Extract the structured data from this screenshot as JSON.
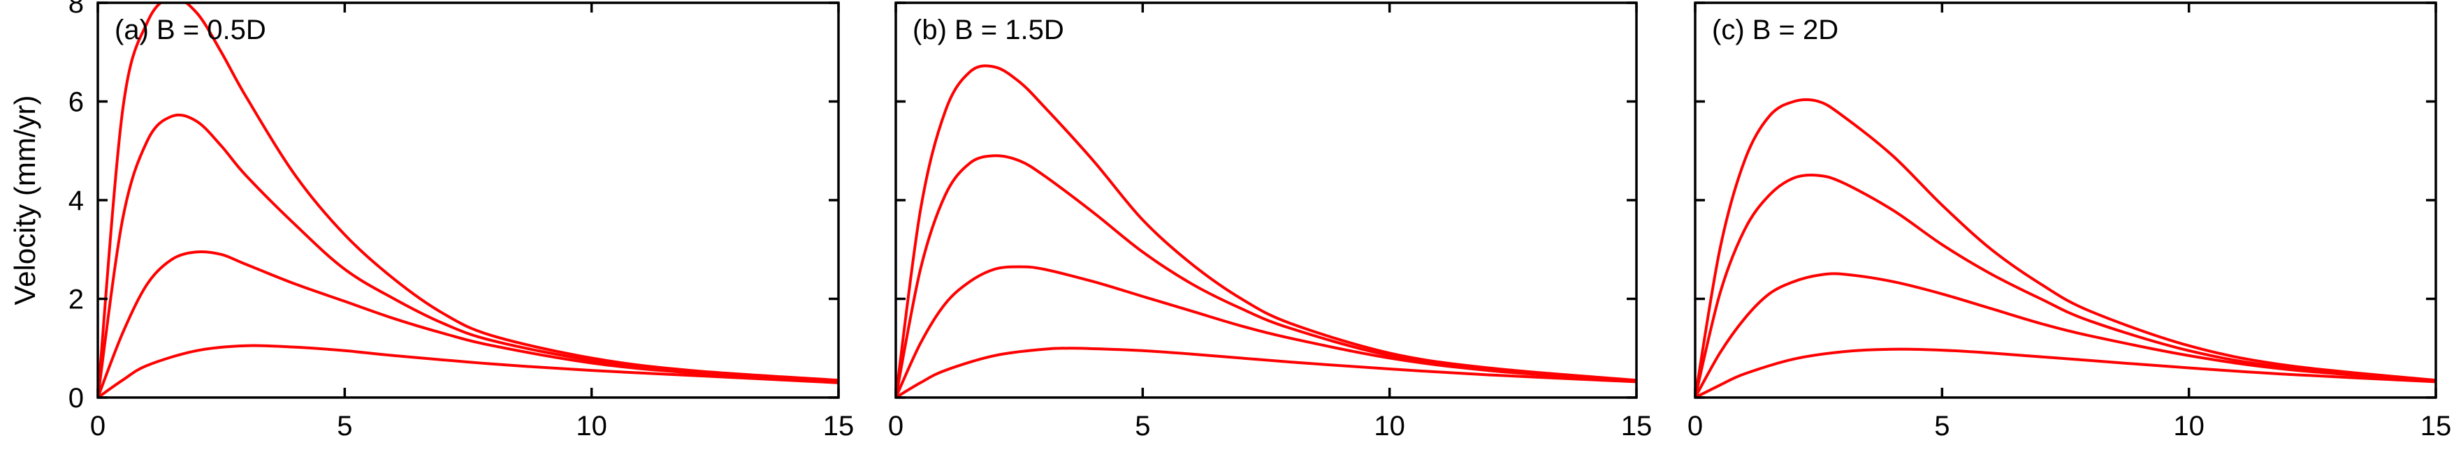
{
  "figure": {
    "ylabel": "Velocity (mm/yr)",
    "line_color": "#ff0000",
    "axis_color": "#000000"
  },
  "chart_data": [
    {
      "type": "line",
      "annotation": "(a) B = 0.5D",
      "xlim": [
        0,
        15
      ],
      "ylim": [
        0,
        8
      ],
      "xticks": [
        0,
        5,
        10,
        15
      ],
      "yticks": [
        0,
        2,
        4,
        6,
        8
      ],
      "ylabel": "Velocity (mm/yr)",
      "grid": false,
      "series": [
        {
          "x": [
            0,
            0.5,
            1,
            1.5,
            2,
            2.5,
            3,
            4,
            5,
            6,
            7,
            8,
            10,
            12,
            15
          ],
          "y": [
            0,
            5.8,
            7.6,
            8.1,
            7.8,
            7.0,
            6.1,
            4.5,
            3.3,
            2.4,
            1.7,
            1.25,
            0.8,
            0.55,
            0.35
          ]
        },
        {
          "x": [
            0,
            0.5,
            1,
            1.5,
            2,
            2.5,
            3,
            4,
            5,
            6,
            7,
            8,
            10,
            12,
            15
          ],
          "y": [
            0,
            3.6,
            5.2,
            5.7,
            5.6,
            5.1,
            4.5,
            3.5,
            2.6,
            2.0,
            1.5,
            1.15,
            0.75,
            0.5,
            0.33
          ]
        },
        {
          "x": [
            0,
            0.5,
            1,
            1.5,
            2,
            2.5,
            3,
            4,
            5,
            6,
            7,
            8,
            10,
            12,
            15
          ],
          "y": [
            0,
            1.3,
            2.3,
            2.8,
            2.95,
            2.9,
            2.7,
            2.3,
            1.95,
            1.6,
            1.3,
            1.05,
            0.7,
            0.5,
            0.3
          ]
        },
        {
          "x": [
            0,
            0.5,
            1,
            2,
            3,
            4,
            5,
            6,
            8,
            10,
            12,
            15
          ],
          "y": [
            0,
            0.35,
            0.65,
            0.95,
            1.05,
            1.02,
            0.95,
            0.85,
            0.68,
            0.55,
            0.45,
            0.3
          ]
        }
      ]
    },
    {
      "type": "line",
      "annotation": "(b) B = 1.5D",
      "xlim": [
        0,
        15
      ],
      "ylim": [
        0,
        8
      ],
      "xticks": [
        0,
        5,
        10,
        15
      ],
      "yticks": [
        0,
        2,
        4,
        6,
        8
      ],
      "grid": false,
      "series": [
        {
          "x": [
            0,
            0.5,
            1,
            1.5,
            2,
            2.5,
            3,
            4,
            5,
            6,
            7,
            8,
            10,
            12,
            15
          ],
          "y": [
            0,
            3.8,
            5.8,
            6.6,
            6.7,
            6.4,
            5.9,
            4.8,
            3.6,
            2.7,
            2.0,
            1.5,
            0.9,
            0.6,
            0.35
          ]
        },
        {
          "x": [
            0,
            0.5,
            1,
            1.5,
            2,
            2.5,
            3,
            4,
            5,
            6,
            7,
            8,
            10,
            12,
            15
          ],
          "y": [
            0,
            2.6,
            4.1,
            4.75,
            4.9,
            4.8,
            4.5,
            3.75,
            2.95,
            2.3,
            1.8,
            1.4,
            0.85,
            0.55,
            0.33
          ]
        },
        {
          "x": [
            0,
            0.5,
            1,
            1.5,
            2,
            2.5,
            3,
            4,
            5,
            6,
            7,
            8,
            10,
            12,
            15
          ],
          "y": [
            0,
            1.1,
            1.9,
            2.35,
            2.6,
            2.65,
            2.6,
            2.35,
            2.05,
            1.75,
            1.45,
            1.2,
            0.8,
            0.55,
            0.33
          ]
        },
        {
          "x": [
            0,
            0.5,
            1,
            2,
            3,
            3.5,
            4,
            5,
            6,
            8,
            10,
            12,
            15
          ],
          "y": [
            0,
            0.3,
            0.55,
            0.85,
            0.98,
            1.0,
            0.99,
            0.95,
            0.88,
            0.72,
            0.58,
            0.46,
            0.32
          ]
        }
      ]
    },
    {
      "type": "line",
      "annotation": "(c) B = 2D",
      "xlim": [
        0,
        15
      ],
      "ylim": [
        0,
        8
      ],
      "xticks": [
        0,
        5,
        10,
        15
      ],
      "yticks": [
        0,
        2,
        4,
        6,
        8
      ],
      "grid": false,
      "series": [
        {
          "x": [
            0,
            0.5,
            1,
            1.5,
            2,
            2.5,
            3,
            4,
            5,
            6,
            7,
            8,
            10,
            12,
            15
          ],
          "y": [
            0,
            3.0,
            4.8,
            5.7,
            6.0,
            6.0,
            5.7,
            4.9,
            3.9,
            3.0,
            2.3,
            1.75,
            1.05,
            0.65,
            0.35
          ]
        },
        {
          "x": [
            0,
            0.5,
            1,
            1.5,
            2,
            2.5,
            3,
            4,
            5,
            6,
            7,
            8,
            10,
            12,
            15
          ],
          "y": [
            0,
            2.1,
            3.4,
            4.1,
            4.45,
            4.5,
            4.35,
            3.8,
            3.1,
            2.5,
            2.0,
            1.55,
            0.95,
            0.6,
            0.33
          ]
        },
        {
          "x": [
            0,
            0.5,
            1,
            1.5,
            2,
            2.5,
            3,
            4,
            5,
            6,
            7,
            8,
            10,
            12,
            15
          ],
          "y": [
            0,
            0.9,
            1.6,
            2.1,
            2.35,
            2.48,
            2.5,
            2.35,
            2.1,
            1.8,
            1.5,
            1.25,
            0.85,
            0.57,
            0.33
          ]
        },
        {
          "x": [
            0,
            0.5,
            1,
            2,
            3,
            4,
            5,
            6,
            8,
            10,
            12,
            15
          ],
          "y": [
            0,
            0.25,
            0.48,
            0.78,
            0.93,
            0.98,
            0.96,
            0.9,
            0.75,
            0.6,
            0.47,
            0.32
          ]
        }
      ]
    }
  ]
}
